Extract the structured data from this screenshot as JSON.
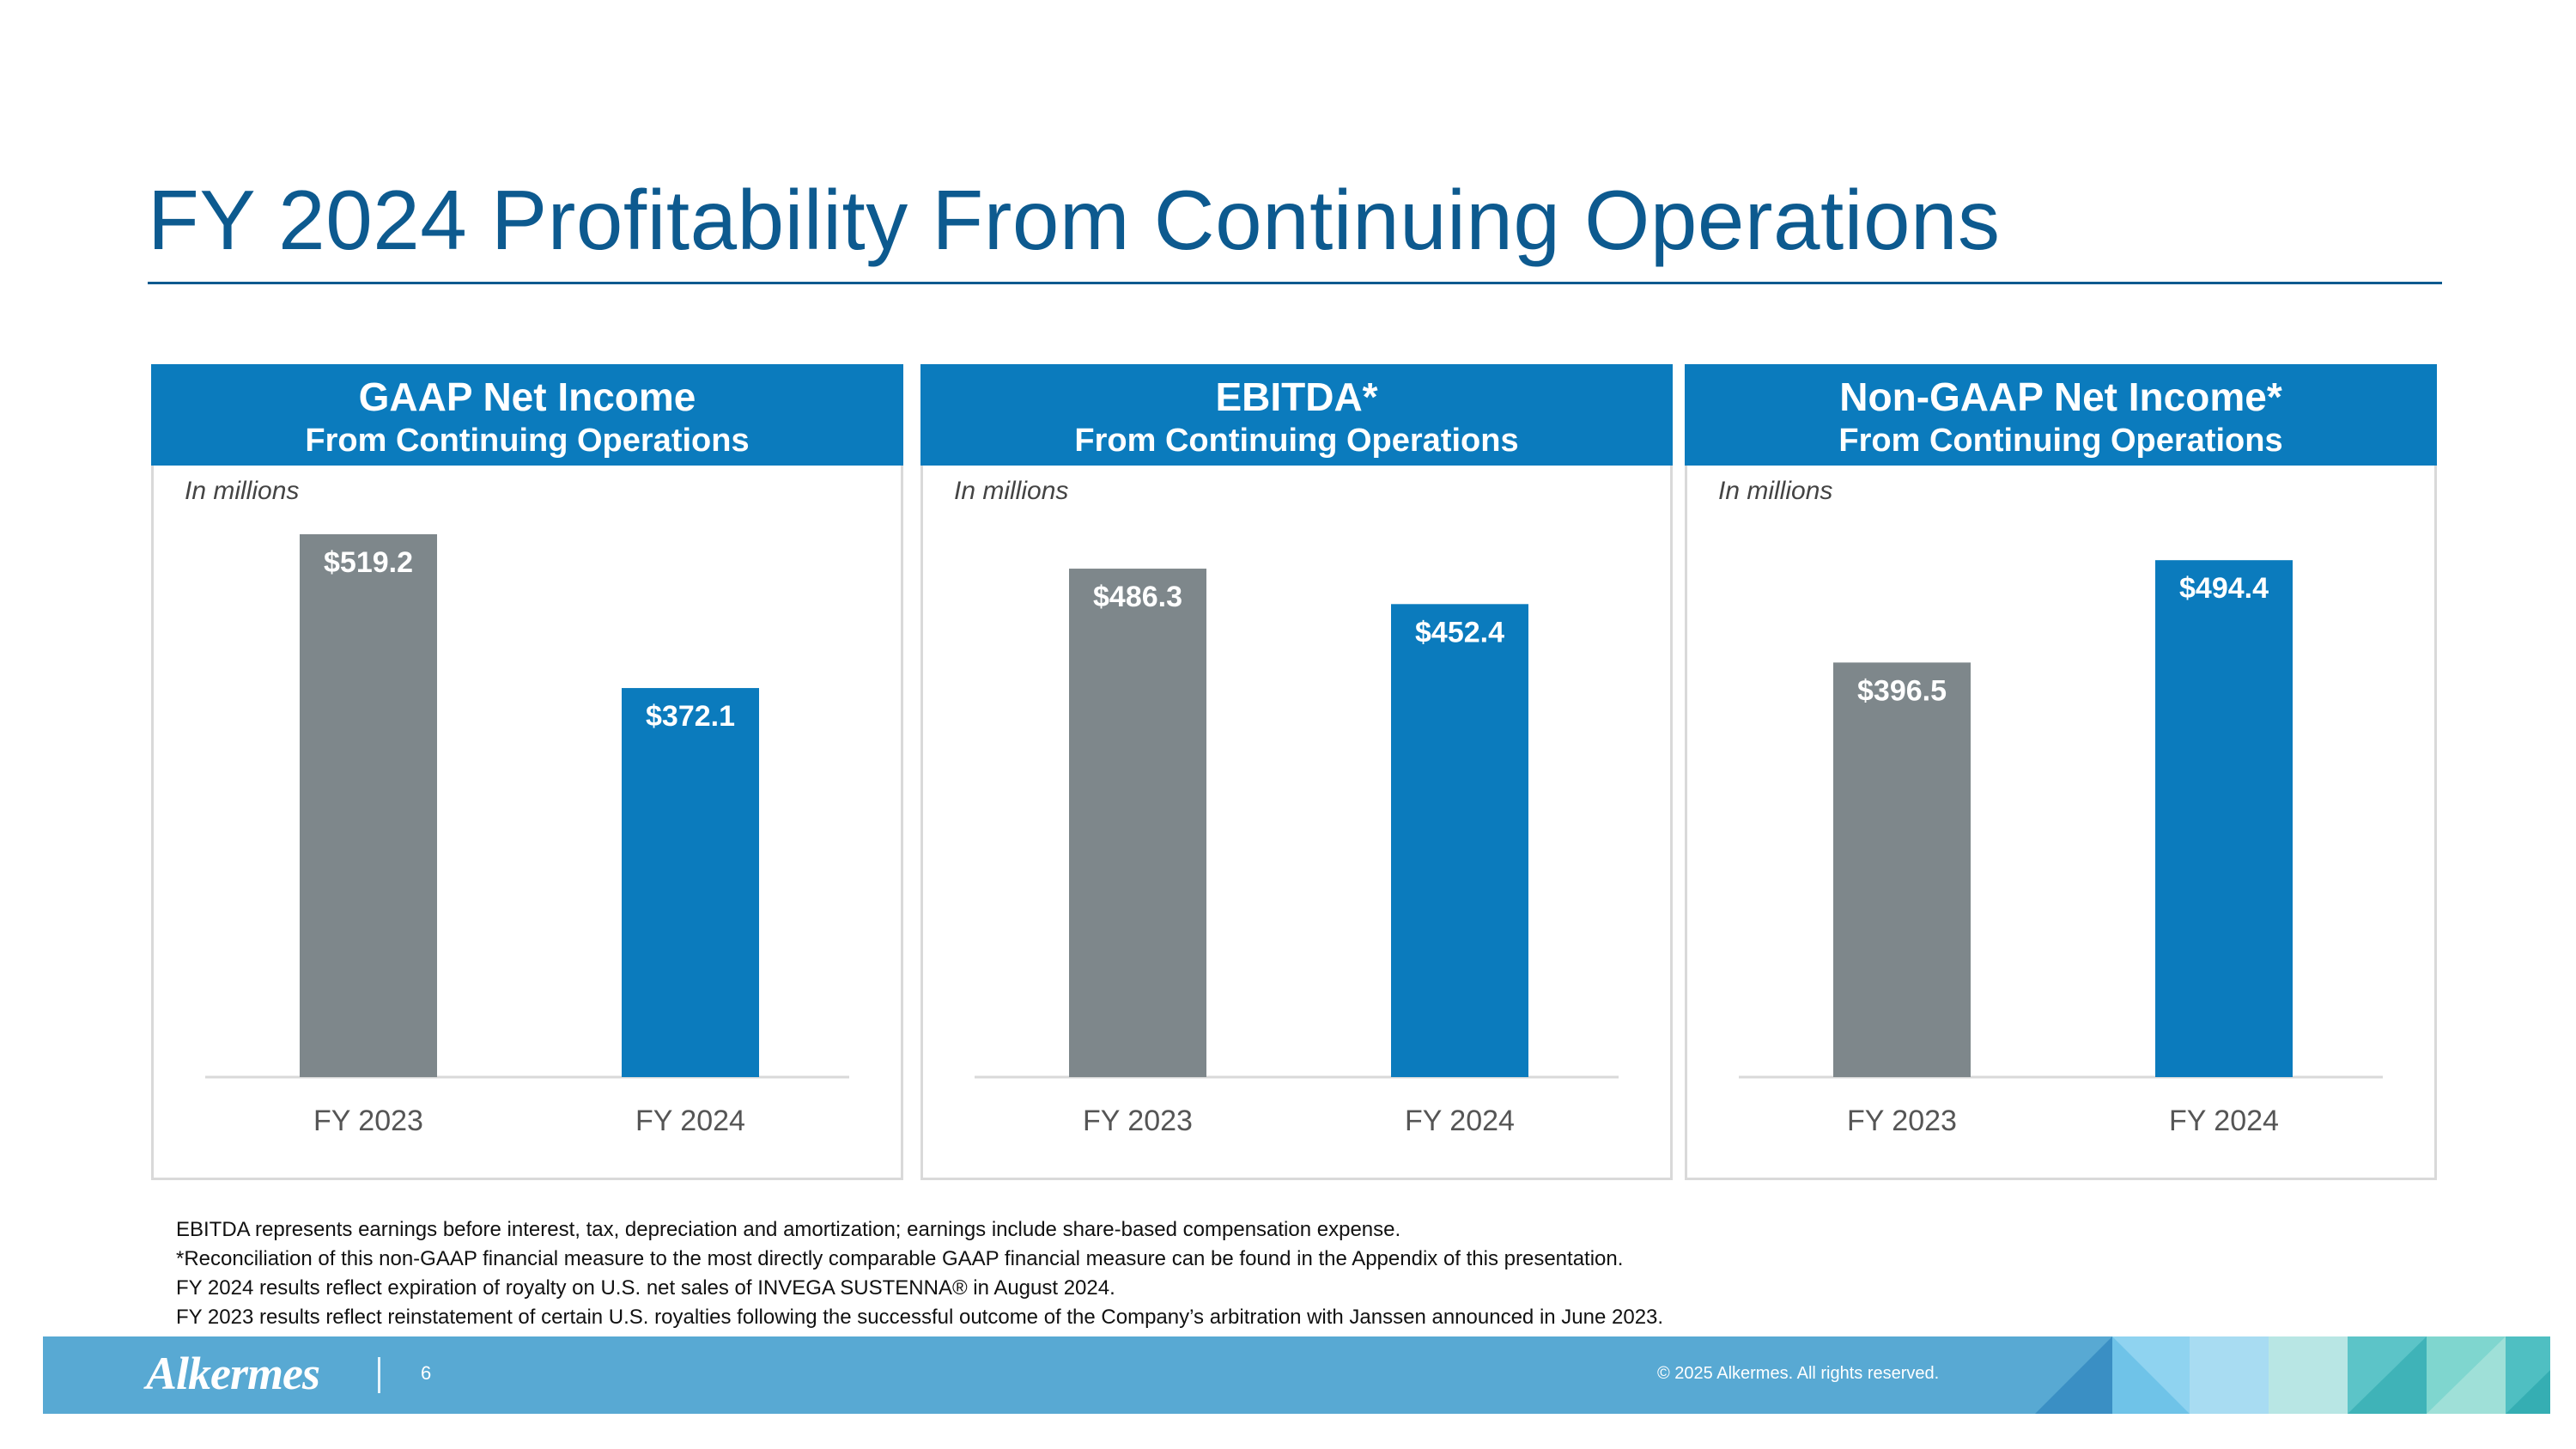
{
  "title": "FY 2024 Profitability From Continuing Operations",
  "colors": {
    "gray_bar": "#7e878b",
    "blue_bar": "#0b7bbd",
    "header_blue": "#0b7bbd",
    "title_blue": "#0d5a8f",
    "footer_blue": "#58a9d3"
  },
  "chart_data": [
    {
      "type": "bar",
      "title": "GAAP Net Income",
      "subtitle": "From Continuing Operations",
      "unit_label": "In millions",
      "categories": [
        "FY 2023",
        "FY 2024"
      ],
      "values": [
        519.2,
        372.1
      ],
      "value_labels": [
        "$519.2",
        "$372.1"
      ],
      "ylim": [
        0,
        519.2
      ]
    },
    {
      "type": "bar",
      "title": "EBITDA*",
      "subtitle": "From Continuing Operations",
      "unit_label": "In millions",
      "categories": [
        "FY 2023",
        "FY 2024"
      ],
      "values": [
        486.3,
        452.4
      ],
      "value_labels": [
        "$486.3",
        "$452.4"
      ],
      "ylim": [
        0,
        519.2
      ]
    },
    {
      "type": "bar",
      "title": "Non-GAAP Net Income*",
      "subtitle": "From Continuing Operations",
      "unit_label": "In millions",
      "categories": [
        "FY 2023",
        "FY 2024"
      ],
      "values": [
        396.5,
        494.4
      ],
      "value_labels": [
        "$396.5",
        "$494.4"
      ],
      "ylim": [
        0,
        519.2
      ]
    }
  ],
  "footnotes": [
    "EBITDA represents earnings before interest, tax, depreciation and amortization; earnings include share-based compensation expense.",
    "*Reconciliation of this non-GAAP financial measure to the most directly comparable GAAP financial measure can be found in the Appendix of this presentation.",
    "FY 2024 results reflect expiration of royalty on U.S. net sales of INVEGA SUSTENNA® in August 2024.",
    "FY 2023 results reflect reinstatement of certain U.S. royalties following the successful outcome of the Company’s arbitration with Janssen announced in June 2023."
  ],
  "footer": {
    "logo_text": "Alkermes",
    "page_number": "6",
    "copyright": "© 2025 Alkermes. All rights reserved."
  }
}
